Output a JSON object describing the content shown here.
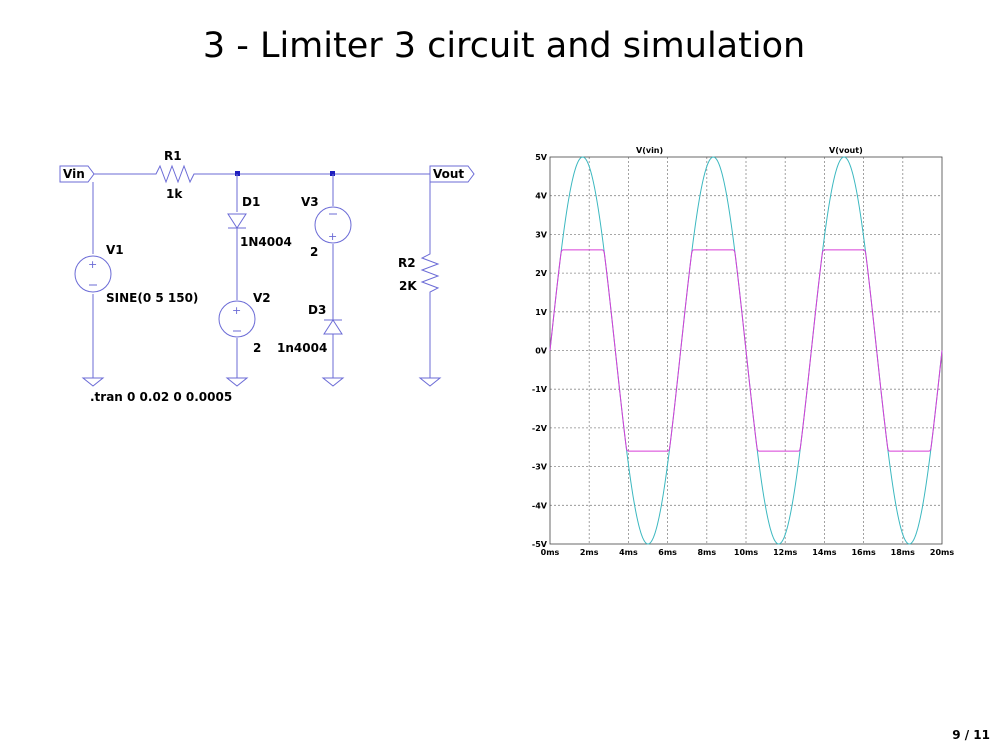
{
  "slide": {
    "title": "3 - Limiter 3 circuit and simulation",
    "page": "9 / 11"
  },
  "schematic": {
    "ports": {
      "vin": "Vin",
      "vout": "Vout"
    },
    "r1": {
      "name": "R1",
      "value": "1k"
    },
    "r2": {
      "name": "R2",
      "value": "2K"
    },
    "d1": {
      "name": "D1",
      "model": "1N4004"
    },
    "d3": {
      "name": "D3",
      "model": "1n4004"
    },
    "v1": {
      "name": "V1",
      "value": "SINE(0 5 150)"
    },
    "v2": {
      "name": "V2",
      "value": "2"
    },
    "v3": {
      "name": "V3",
      "value": "2"
    },
    "directive": ".tran 0 0.02 0 0.0005"
  },
  "chart_data": {
    "type": "line",
    "x_unit": "ms",
    "xlim": [
      0,
      20
    ],
    "ylim": [
      -5,
      5
    ],
    "x_ticks": [
      "0ms",
      "2ms",
      "4ms",
      "6ms",
      "8ms",
      "10ms",
      "12ms",
      "14ms",
      "16ms",
      "18ms",
      "20ms"
    ],
    "y_ticks": [
      "5V",
      "4V",
      "3V",
      "2V",
      "1V",
      "0V",
      "-1V",
      "-2V",
      "-3V",
      "-4V",
      "-5V"
    ],
    "grid": true,
    "series": [
      {
        "name": "V(vin)",
        "color": "#3cb8c0",
        "amplitude": 5,
        "frequency_hz": 150
      },
      {
        "name": "V(vout)",
        "color": "#d63fd6",
        "amplitude": 5,
        "frequency_hz": 150,
        "clip_high": 2.6,
        "clip_low": -2.6
      }
    ]
  }
}
